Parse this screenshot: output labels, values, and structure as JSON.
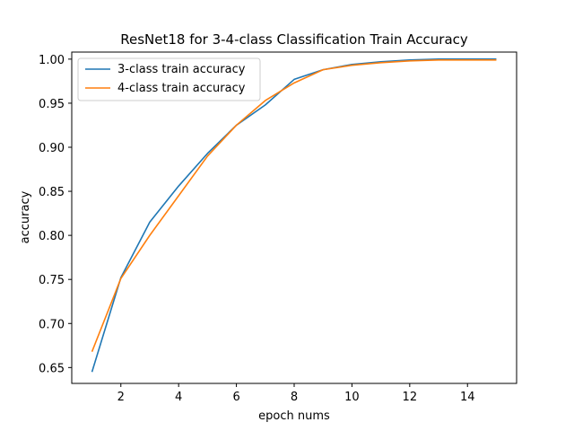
{
  "chart_data": {
    "type": "line",
    "title": "ResNet18 for 3-4-class Classification Train Accuracy",
    "xlabel": "epoch nums",
    "ylabel": "accuracy",
    "xlim": [
      0.3,
      15.7
    ],
    "ylim": [
      0.632,
      1.008
    ],
    "xticks": [
      2,
      4,
      6,
      8,
      10,
      12,
      14
    ],
    "xtick_labels": [
      "2",
      "4",
      "6",
      "8",
      "10",
      "12",
      "14"
    ],
    "yticks": [
      0.65,
      0.7,
      0.75,
      0.8,
      0.85,
      0.9,
      0.95,
      1.0
    ],
    "ytick_labels": [
      "0.65",
      "0.70",
      "0.75",
      "0.80",
      "0.85",
      "0.90",
      "0.95",
      "1.00"
    ],
    "grid": false,
    "legend_position": "upper left",
    "x": [
      1,
      2,
      3,
      4,
      5,
      6,
      7,
      8,
      9,
      10,
      11,
      12,
      13,
      14,
      15
    ],
    "series": [
      {
        "name": "3-class train accuracy",
        "color": "#1f77b4",
        "values": [
          0.645,
          0.752,
          0.815,
          0.856,
          0.893,
          0.925,
          0.948,
          0.977,
          0.988,
          0.994,
          0.997,
          0.999,
          1.0,
          1.0,
          1.0
        ]
      },
      {
        "name": "4-class train accuracy",
        "color": "#ff7f0e",
        "values": [
          0.668,
          0.751,
          0.8,
          0.845,
          0.89,
          0.925,
          0.953,
          0.973,
          0.988,
          0.993,
          0.996,
          0.998,
          0.999,
          0.999,
          0.999
        ]
      }
    ]
  }
}
